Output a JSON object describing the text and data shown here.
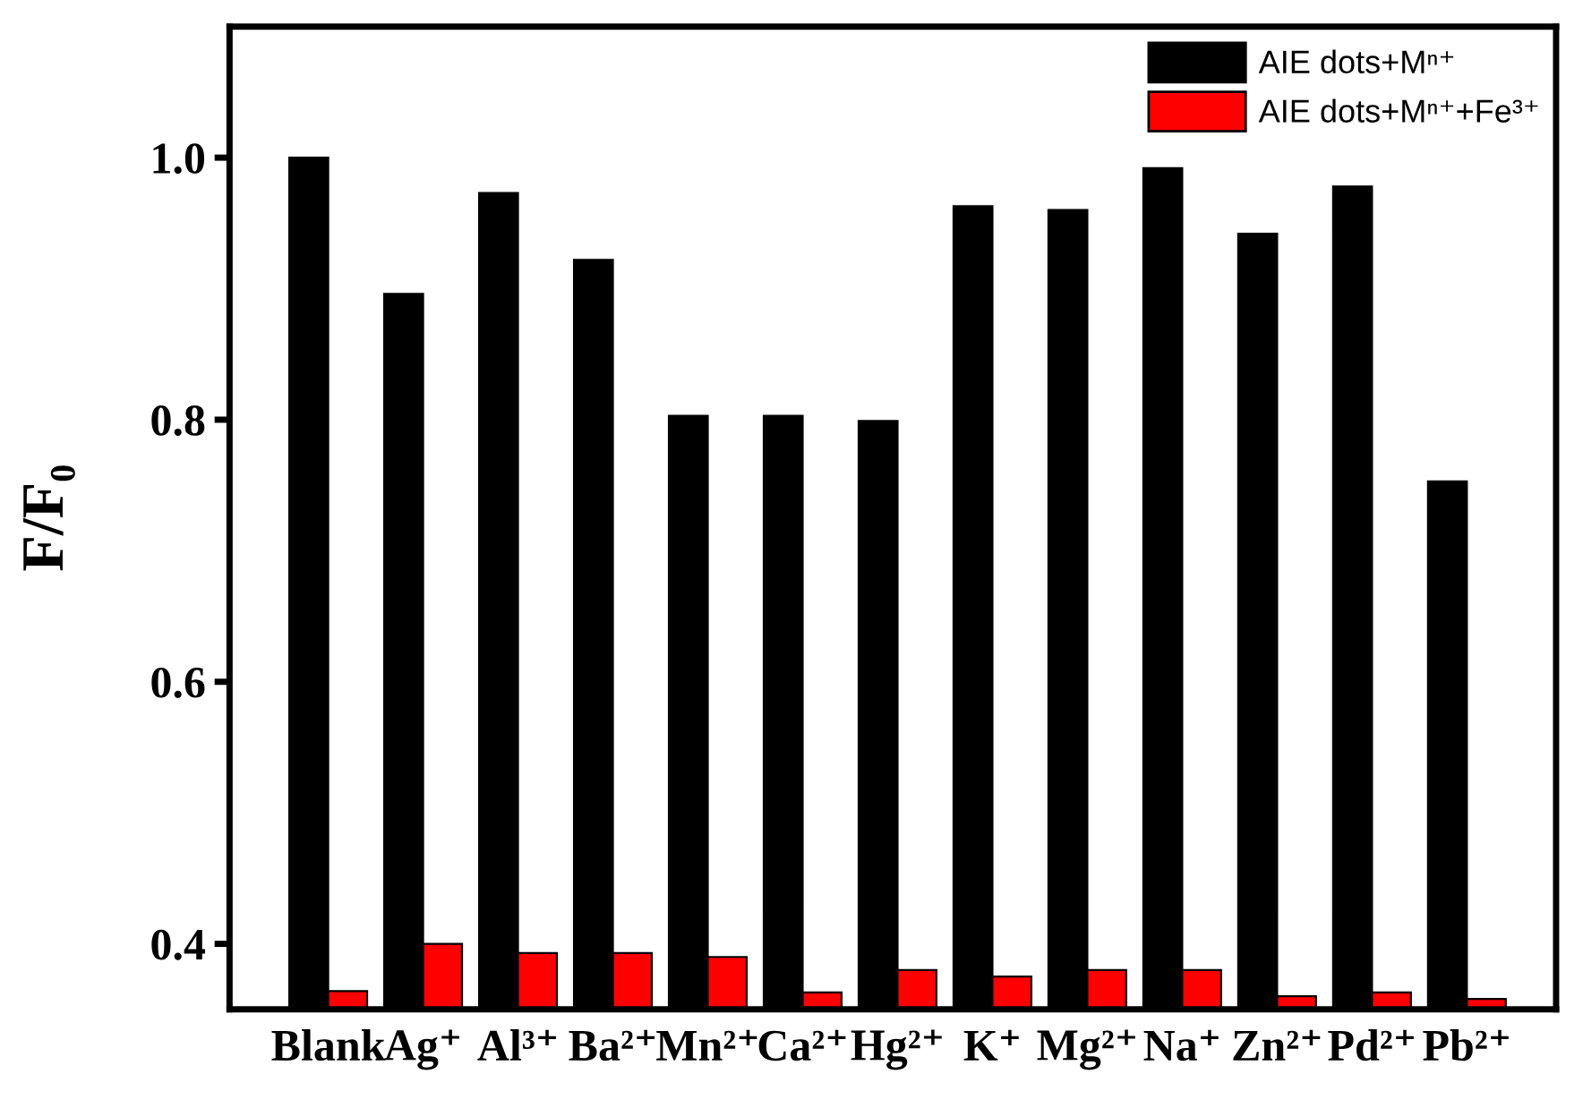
{
  "chart_data": {
    "type": "bar",
    "ylabel": "F/F₀",
    "categories": [
      "Blank",
      "Ag⁺",
      "Al³⁺",
      "Ba²⁺",
      "Mn²⁺",
      "Ca²⁺",
      "Hg²⁺",
      "K⁺",
      "Mg²⁺",
      "Na⁺",
      "Zn²⁺",
      "Pd²⁺",
      "Pb²⁺"
    ],
    "series": [
      {
        "name": "AIE dots+Mⁿ⁺",
        "color": "#000000",
        "values": [
          1.0,
          0.896,
          0.973,
          0.922,
          0.803,
          0.803,
          0.799,
          0.963,
          0.96,
          0.992,
          0.942,
          0.978,
          0.753
        ]
      },
      {
        "name": "AIE dots+Mⁿ⁺+Fe³⁺",
        "color": "#ff0000",
        "values": [
          0.364,
          0.4,
          0.393,
          0.393,
          0.39,
          0.363,
          0.38,
          0.375,
          0.38,
          0.38,
          0.36,
          0.363,
          0.358
        ]
      }
    ],
    "ylim": [
      0.35,
      1.1
    ],
    "yticks": [
      {
        "value": 0.4,
        "label": "0.4"
      },
      {
        "value": 0.6,
        "label": "0.6"
      },
      {
        "value": 0.8,
        "label": "0.8"
      },
      {
        "value": 1.0,
        "label": "1.0"
      }
    ],
    "grid": false,
    "legend": "top right"
  }
}
